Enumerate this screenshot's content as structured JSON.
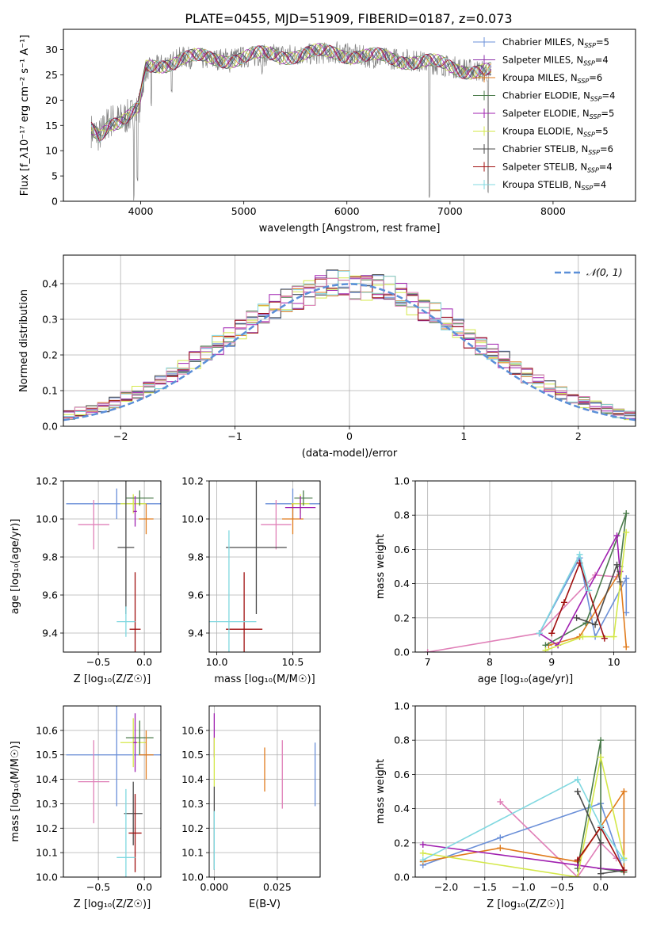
{
  "figure_title": "PLATE=0455, MJD=51909, FIBERID=0187, z=0.073",
  "colors": {
    "Chabrier MILES": "#6a8fd8",
    "Salpeter MILES": "#8b2fa8",
    "Kroupa MILES": "#e07b1c",
    "Chabrier ELODIE": "#4a7a4a",
    "Salpeter ELODIE": "#a020b0",
    "Kroupa ELODIE": "#d4e84a",
    "Chabrier STELIB": "#4a4a4a",
    "Salpeter STELIB": "#a01010",
    "Kroupa STELIB": "#80d8e0",
    "gaussian": "#5b8fd8",
    "extra": "#e080b8"
  },
  "chart_data": [
    {
      "type": "line",
      "id": "spectrum",
      "xlabel": "wavelength [Angstrom, rest frame]",
      "ylabel": "Flux [f_λ10⁻¹⁷ erg cm⁻² s⁻¹ A⁻¹]",
      "xlim": [
        3250,
        8800
      ],
      "ylim": [
        0,
        34
      ],
      "xticks": [
        "4000",
        "5000",
        "6000",
        "7000",
        "8000"
      ],
      "yticks": [
        "0",
        "5",
        "10",
        "15",
        "20",
        "25",
        "30"
      ],
      "legend_position": "top-right",
      "legend": [
        {
          "label": "Chabrier MILES, N",
          "sub": "SSP",
          "n": "=5",
          "color": "#6a8fd8"
        },
        {
          "label": "Salpeter MILES, N",
          "sub": "SSP",
          "n": "=4",
          "color": "#8b2fa8"
        },
        {
          "label": "Kroupa MILES, N",
          "sub": "SSP",
          "n": "=6",
          "color": "#e07b1c"
        },
        {
          "label": "Chabrier ELODIE, N",
          "sub": "SSP",
          "n": "=4",
          "color": "#4a7a4a"
        },
        {
          "label": "Salpeter ELODIE, N",
          "sub": "SSP",
          "n": "=5",
          "color": "#a020b0"
        },
        {
          "label": "Kroupa ELODIE, N",
          "sub": "SSP",
          "n": "=5",
          "color": "#d4e84a"
        },
        {
          "label": "Chabrier STELIB, N",
          "sub": "SSP",
          "n": "=6",
          "color": "#4a4a4a"
        },
        {
          "label": "Salpeter STELIB, N",
          "sub": "SSP",
          "n": "=4",
          "color": "#a01010"
        },
        {
          "label": "Kroupa STELIB, N",
          "sub": "SSP",
          "n": "=4",
          "color": "#80d8e0"
        }
      ],
      "continuum": [
        [
          3520,
          14
        ],
        [
          3600,
          13
        ],
        [
          3700,
          16
        ],
        [
          3800,
          16
        ],
        [
          3900,
          17
        ],
        [
          3980,
          18
        ],
        [
          4050,
          26
        ],
        [
          4200,
          27
        ],
        [
          4400,
          28.5
        ],
        [
          4700,
          28
        ],
        [
          5000,
          28.5
        ],
        [
          5300,
          29
        ],
        [
          5600,
          29
        ],
        [
          5900,
          29.5
        ],
        [
          6200,
          28.5
        ],
        [
          6600,
          28
        ],
        [
          6900,
          27
        ],
        [
          7200,
          26
        ],
        [
          7400,
          25.5
        ]
      ],
      "absorption_dips": [
        [
          3934,
          0
        ],
        [
          3969,
          4
        ],
        [
          4102,
          18
        ],
        [
          4300,
          20
        ],
        [
          4861,
          25
        ],
        [
          5175,
          25
        ],
        [
          5890,
          26
        ],
        [
          6563,
          27
        ],
        [
          6800,
          0
        ],
        [
          7370,
          0
        ]
      ]
    },
    {
      "type": "bar",
      "id": "residual-histogram",
      "xlabel": "(data-model)/error",
      "ylabel": "Normed distribution",
      "xlim": [
        -2.5,
        2.5
      ],
      "ylim": [
        0,
        0.48
      ],
      "xticks": [
        "−2",
        "−1",
        "0",
        "1",
        "2"
      ],
      "yticks": [
        "0.0",
        "0.1",
        "0.2",
        "0.3",
        "0.4"
      ],
      "gaussian_label": "𝒩(0, 1)",
      "bin_width": 0.1,
      "bin_start": -2.5
    },
    {
      "type": "scatter",
      "id": "age-vs-Z",
      "xlabel": "Z [log₁₀(Z/Z☉)]",
      "ylabel": "age [log₁₀(age/yr)]",
      "xlim": [
        -0.88,
        0.18
      ],
      "ylim": [
        9.3,
        10.2
      ],
      "xticks": [
        "−0.5",
        "0.0"
      ],
      "yticks": [
        "9.4",
        "9.6",
        "9.8",
        "10.0",
        "10.2"
      ],
      "points": [
        {
          "x": -0.3,
          "y": 10.08,
          "xerr": 0.55,
          "yerr": 0.08,
          "color": "#6a8fd8"
        },
        {
          "x": -0.55,
          "y": 9.97,
          "xerr": 0.17,
          "yerr": 0.13,
          "color": "#e080b8"
        },
        {
          "x": -0.12,
          "y": 10.08,
          "xerr": 0.14,
          "yerr": 0.05,
          "color": "#d4e84a"
        },
        {
          "x": -0.05,
          "y": 10.11,
          "xerr": 0.15,
          "yerr": 0.04,
          "color": "#4a7a4a"
        },
        {
          "x": 0.02,
          "y": 10.0,
          "xerr": 0.08,
          "yerr": 0.08,
          "color": "#e07b1c"
        },
        {
          "x": -0.1,
          "y": 10.04,
          "xerr": 0.02,
          "yerr": 0.08,
          "color": "#a020b0"
        },
        {
          "x": -0.2,
          "y": 9.85,
          "xerr": 0.09,
          "yerr": 0.35,
          "color": "#4a4a4a"
        },
        {
          "x": -0.1,
          "y": 9.42,
          "xerr": 0.06,
          "yerr": 0.3,
          "color": "#a01010"
        },
        {
          "x": -0.2,
          "y": 9.46,
          "xerr": 0.1,
          "yerr": 0.08,
          "color": "#80d8e0"
        }
      ]
    },
    {
      "type": "scatter",
      "id": "age-vs-mass",
      "xlabel": "mass [log₁₀(M/M☉)]",
      "xlim": [
        9.95,
        10.68
      ],
      "ylim": [
        9.3,
        10.2
      ],
      "xticks": [
        "10.0",
        "10.5"
      ],
      "yticks": [
        "9.4",
        "9.6",
        "9.8",
        "10.0",
        "10.2"
      ],
      "points": [
        {
          "x": 10.5,
          "y": 10.08,
          "xerr": 0.18,
          "yerr": 0.08,
          "color": "#6a8fd8"
        },
        {
          "x": 10.39,
          "y": 9.97,
          "xerr": 0.1,
          "yerr": 0.13,
          "color": "#e080b8"
        },
        {
          "x": 10.55,
          "y": 10.08,
          "xerr": 0.06,
          "yerr": 0.05,
          "color": "#d4e84a"
        },
        {
          "x": 10.57,
          "y": 10.11,
          "xerr": 0.06,
          "yerr": 0.04,
          "color": "#4a7a4a"
        },
        {
          "x": 10.5,
          "y": 10.0,
          "xerr": 0.07,
          "yerr": 0.08,
          "color": "#e07b1c"
        },
        {
          "x": 10.55,
          "y": 10.06,
          "xerr": 0.1,
          "yerr": 0.06,
          "color": "#a020b0"
        },
        {
          "x": 10.26,
          "y": 9.85,
          "xerr": 0.2,
          "yerr": 0.35,
          "color": "#4a4a4a"
        },
        {
          "x": 10.18,
          "y": 9.42,
          "xerr": 0.12,
          "yerr": 0.3,
          "color": "#a01010"
        },
        {
          "x": 10.08,
          "y": 9.46,
          "xerr": 0.18,
          "yerr": 0.48,
          "color": "#80d8e0"
        }
      ]
    },
    {
      "type": "line",
      "id": "massweight-vs-age",
      "xlabel": "age [log₁₀(age/yr)]",
      "ylabel": "mass weight",
      "xlim": [
        6.8,
        10.35
      ],
      "ylim": [
        0,
        1.0
      ],
      "xticks": [
        "7",
        "8",
        "9",
        "10"
      ],
      "yticks": [
        "0.0",
        "0.2",
        "0.4",
        "0.6",
        "0.8",
        "1.0"
      ],
      "series": [
        {
          "color": "#e080b8",
          "points": [
            [
              7.0,
              0.0
            ],
            [
              8.8,
              0.11
            ],
            [
              9.7,
              0.45
            ],
            [
              10.05,
              0.44
            ]
          ]
        },
        {
          "color": "#6a8fd8",
          "points": [
            [
              8.8,
              0.11
            ],
            [
              9.45,
              0.55
            ],
            [
              9.7,
              0.09
            ],
            [
              10.2,
              0.43
            ],
            [
              10.2,
              0.23
            ]
          ]
        },
        {
          "color": "#e07b1c",
          "points": [
            [
              8.95,
              0.04
            ],
            [
              9.45,
              0.09
            ],
            [
              10.1,
              0.47
            ],
            [
              10.2,
              0.03
            ]
          ]
        },
        {
          "color": "#4a7a4a",
          "points": [
            [
              8.9,
              0.04
            ],
            [
              9.55,
              0.17
            ],
            [
              10.2,
              0.81
            ],
            [
              10.1,
              0.5
            ]
          ]
        },
        {
          "color": "#a020b0",
          "points": [
            [
              8.8,
              0.11
            ],
            [
              9.1,
              0.04
            ],
            [
              10.05,
              0.68
            ],
            [
              10.1,
              0.47
            ]
          ]
        },
        {
          "color": "#d4e84a",
          "points": [
            [
              8.9,
              0.01
            ],
            [
              9.5,
              0.09
            ],
            [
              10.0,
              0.09
            ],
            [
              10.2,
              0.7
            ]
          ]
        },
        {
          "color": "#4a4a4a",
          "points": [
            [
              9.4,
              0.2
            ],
            [
              9.7,
              0.16
            ],
            [
              10.05,
              0.51
            ],
            [
              10.1,
              0.41
            ]
          ]
        },
        {
          "color": "#a01010",
          "points": [
            [
              9.0,
              0.11
            ],
            [
              9.2,
              0.29
            ],
            [
              9.45,
              0.52
            ],
            [
              9.85,
              0.08
            ]
          ]
        },
        {
          "color": "#80d8e0",
          "points": [
            [
              8.8,
              0.11
            ],
            [
              9.45,
              0.57
            ],
            [
              9.6,
              0.36
            ]
          ]
        }
      ]
    },
    {
      "type": "scatter",
      "id": "mass-vs-Z",
      "xlabel": "Z [log₁₀(Z/Z☉)]",
      "ylabel": "mass [log₁₀(M/M☉)]",
      "xlim": [
        -0.88,
        0.18
      ],
      "ylim": [
        10.0,
        10.7
      ],
      "xticks": [
        "−0.5",
        "0.0"
      ],
      "yticks": [
        "10.0",
        "10.1",
        "10.2",
        "10.3",
        "10.4",
        "10.5",
        "10.6"
      ],
      "points": [
        {
          "x": -0.3,
          "y": 10.5,
          "xerr": 0.55,
          "yerr": 0.21,
          "color": "#6a8fd8"
        },
        {
          "x": -0.55,
          "y": 10.39,
          "xerr": 0.17,
          "yerr": 0.17,
          "color": "#e080b8"
        },
        {
          "x": -0.12,
          "y": 10.55,
          "xerr": 0.14,
          "yerr": 0.1,
          "color": "#d4e84a"
        },
        {
          "x": -0.05,
          "y": 10.57,
          "xerr": 0.15,
          "yerr": 0.07,
          "color": "#4a7a4a"
        },
        {
          "x": 0.02,
          "y": 10.5,
          "xerr": 0.08,
          "yerr": 0.1,
          "color": "#e07b1c"
        },
        {
          "x": -0.1,
          "y": 10.55,
          "xerr": 0.02,
          "yerr": 0.12,
          "color": "#a020b0"
        },
        {
          "x": -0.12,
          "y": 10.26,
          "xerr": 0.1,
          "yerr": 0.13,
          "color": "#4a4a4a"
        },
        {
          "x": -0.1,
          "y": 10.18,
          "xerr": 0.07,
          "yerr": 0.16,
          "color": "#a01010"
        },
        {
          "x": -0.2,
          "y": 10.08,
          "xerr": 0.1,
          "yerr": 0.28,
          "color": "#80d8e0"
        }
      ]
    },
    {
      "type": "scatter",
      "id": "mass-vs-EBV",
      "xlabel": "E(B-V)",
      "xlim": [
        -0.002,
        0.042
      ],
      "ylim": [
        10.0,
        10.7
      ],
      "xticks": [
        "0.000",
        "0.025"
      ],
      "yticks": [
        "10.0",
        "10.1",
        "10.2",
        "10.3",
        "10.4",
        "10.5",
        "10.6"
      ],
      "points": [
        {
          "x": 0.04,
          "y": 10.42,
          "yerr": 0.13,
          "color": "#6a8fd8"
        },
        {
          "x": 0.02,
          "y": 10.44,
          "yerr": 0.09,
          "color": "#e07b1c"
        },
        {
          "x": 0.027,
          "y": 10.42,
          "yerr": 0.14,
          "color": "#e080b8"
        },
        {
          "x": 0.0,
          "y": 10.58,
          "yerr": 0.09,
          "color": "#a020b0"
        },
        {
          "x": 0.0,
          "y": 10.47,
          "yerr": 0.1,
          "color": "#d4e84a"
        },
        {
          "x": 0.0,
          "y": 10.2,
          "yerr": 0.17,
          "color": "#4a4a4a"
        },
        {
          "x": 0.0,
          "y": 10.15,
          "yerr": 0.12,
          "color": "#80d8e0"
        }
      ]
    },
    {
      "type": "line",
      "id": "massweight-vs-Z",
      "xlabel": "Z [log₁₀(Z/Z☉)]",
      "ylabel": "mass weight",
      "xlim": [
        -2.4,
        0.45
      ],
      "ylim": [
        0,
        1.0
      ],
      "xticks": [
        "−2.0",
        "−1.5",
        "−1.0",
        "−0.5",
        "0.0"
      ],
      "yticks": [
        "0.0",
        "0.2",
        "0.4",
        "0.6",
        "0.8",
        "1.0"
      ],
      "series": [
        {
          "color": "#e080b8",
          "points": [
            [
              -1.3,
              0.44
            ],
            [
              -0.3,
              0.0
            ],
            [
              0.0,
              0.2
            ],
            [
              0.2,
              0.11
            ]
          ]
        },
        {
          "color": "#6a8fd8",
          "points": [
            [
              -2.3,
              0.07
            ],
            [
              -1.3,
              0.23
            ],
            [
              0.0,
              0.43
            ],
            [
              0.3,
              0.03
            ]
          ]
        },
        {
          "color": "#e07b1c",
          "points": [
            [
              -2.3,
              0.09
            ],
            [
              -1.3,
              0.17
            ],
            [
              -0.3,
              0.09
            ],
            [
              0.3,
              0.5
            ],
            [
              0.3,
              0.03
            ]
          ]
        },
        {
          "color": "#4a7a4a",
          "points": [
            [
              -0.3,
              0.05
            ],
            [
              0.0,
              0.8
            ],
            [
              0.0,
              0.05
            ],
            [
              0.3,
              0.03
            ]
          ]
        },
        {
          "color": "#a020b0",
          "points": [
            [
              -2.3,
              0.19
            ],
            [
              -0.3,
              0.07
            ],
            [
              0.0,
              0.05
            ],
            [
              0.3,
              0.04
            ]
          ]
        },
        {
          "color": "#d4e84a",
          "points": [
            [
              -2.3,
              0.14
            ],
            [
              -0.3,
              0.0
            ],
            [
              0.0,
              0.7
            ],
            [
              0.3,
              0.11
            ]
          ]
        },
        {
          "color": "#4a4a4a",
          "points": [
            [
              -0.3,
              0.5
            ],
            [
              0.0,
              0.2
            ],
            [
              0.0,
              0.02
            ],
            [
              0.3,
              0.04
            ]
          ]
        },
        {
          "color": "#a01010",
          "points": [
            [
              -0.3,
              0.1
            ],
            [
              0.0,
              0.29
            ],
            [
              0.3,
              0.04
            ]
          ]
        },
        {
          "color": "#80d8e0",
          "points": [
            [
              -2.3,
              0.1
            ],
            [
              -0.3,
              0.57
            ],
            [
              0.0,
              0.3
            ],
            [
              0.3,
              0.1
            ]
          ]
        }
      ]
    }
  ]
}
